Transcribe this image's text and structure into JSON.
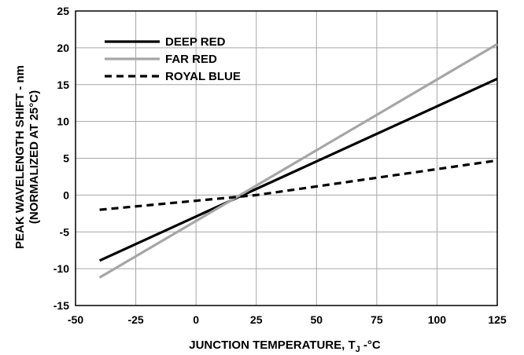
{
  "chart_data": {
    "type": "line",
    "xlabel": "JUNCTION TEMPERATURE, T",
    "xlabel_subscript": "J",
    "xlabel_suffix": " -°C",
    "ylabel_line1": "PEAK WAVELENGTH SHIFT - nm",
    "ylabel_line2": "(NORMALIZED AT 25°C)",
    "xlim": [
      -50,
      125
    ],
    "ylim": [
      -15,
      25
    ],
    "xticks": [
      -50,
      -25,
      0,
      25,
      50,
      75,
      100,
      125
    ],
    "yticks": [
      -15,
      -10,
      -5,
      0,
      5,
      10,
      15,
      20,
      25
    ],
    "grid": true,
    "legend_position": "top-left",
    "series": [
      {
        "name": "DEEP RED",
        "color": "#000000",
        "dash": "solid",
        "x": [
          -40,
          125
        ],
        "y": [
          -8.9,
          15.8
        ]
      },
      {
        "name": "FAR RED",
        "color": "#a6a6a6",
        "dash": "solid",
        "x": [
          -40,
          125
        ],
        "y": [
          -11.2,
          20.5
        ]
      },
      {
        "name": "ROYAL BLUE",
        "color": "#000000",
        "dash": "dashed",
        "x": [
          -40,
          25,
          125
        ],
        "y": [
          -2.0,
          0,
          4.7
        ]
      }
    ]
  }
}
